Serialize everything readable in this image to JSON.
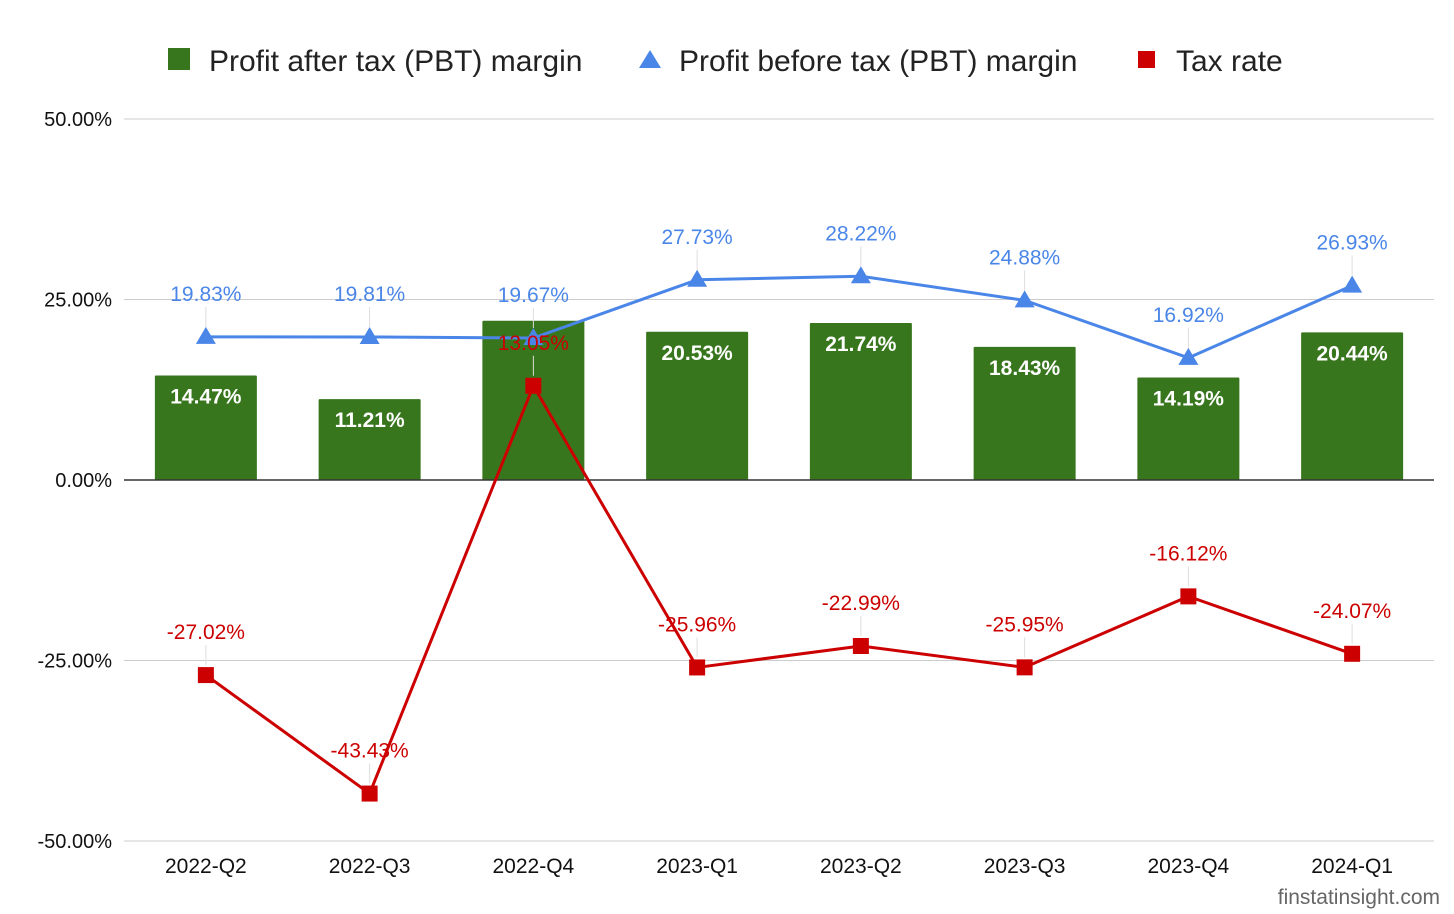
{
  "chart_data": {
    "type": "bar",
    "categories": [
      "2022-Q2",
      "2022-Q3",
      "2022-Q4",
      "2023-Q1",
      "2023-Q2",
      "2023-Q3",
      "2023-Q4",
      "2024-Q1"
    ],
    "series": [
      {
        "name": "Profit after tax (PBT) margin",
        "type": "bar",
        "color": "#38761d",
        "marker": "square",
        "values": [
          14.47,
          11.21,
          22.06,
          20.53,
          21.74,
          18.43,
          14.19,
          20.44
        ],
        "labels": [
          "14.47%",
          "11.21%",
          "",
          "20.53%",
          "21.74%",
          "18.43%",
          "14.19%",
          "20.44%"
        ]
      },
      {
        "name": "Profit before tax (PBT) margin",
        "type": "line",
        "color": "#4a86e8",
        "marker": "triangle",
        "values": [
          19.83,
          19.81,
          19.67,
          27.73,
          28.22,
          24.88,
          16.92,
          26.93
        ],
        "labels": [
          "19.83%",
          "19.81%",
          "19.67%",
          "27.73%",
          "28.22%",
          "24.88%",
          "16.92%",
          "26.93%"
        ]
      },
      {
        "name": "Tax rate",
        "type": "line",
        "color": "#cc0000",
        "marker": "square",
        "values": [
          -27.02,
          -43.43,
          13.05,
          -25.96,
          -22.99,
          -25.95,
          -16.12,
          -24.07
        ],
        "labels": [
          "-27.02%",
          "-43.43%",
          "13.05%",
          "-25.96%",
          "-22.99%",
          "-25.95%",
          "-16.12%",
          "-24.07%"
        ]
      }
    ],
    "yticks": [
      50,
      25,
      0,
      -25,
      -50
    ],
    "ytick_labels": [
      "50.00%",
      "25.00%",
      "0.00%",
      "-25.00%",
      "-50.00%"
    ],
    "ylim": [
      -50,
      50
    ],
    "grid": true,
    "legend_position": "top-center",
    "title": "",
    "xlabel": "",
    "ylabel": ""
  },
  "watermark": "finstatinsight.com"
}
